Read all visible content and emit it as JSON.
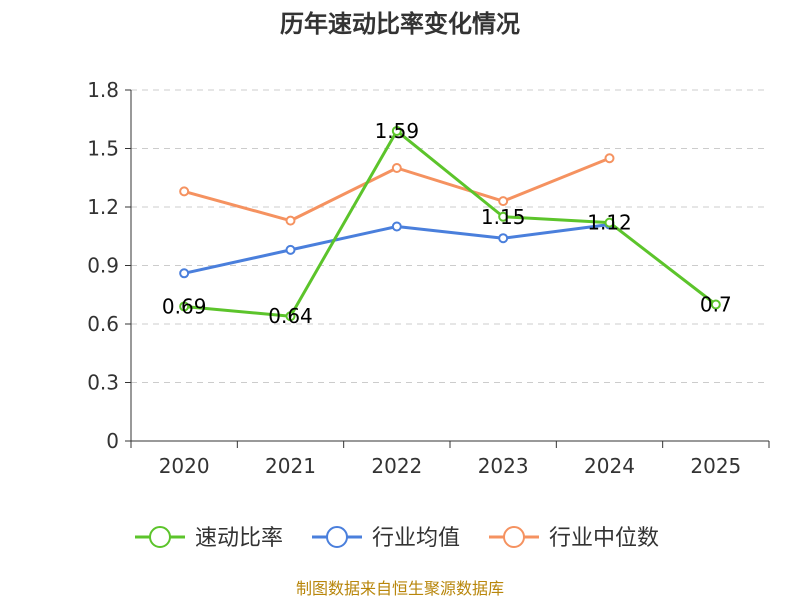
{
  "chart_data": {
    "type": "line",
    "title": "历年速动比率变化情况",
    "categories": [
      "2020",
      "2021",
      "2022",
      "2023",
      "2024",
      "2025"
    ],
    "ylim": [
      0,
      1.8
    ],
    "yticks": [
      "0",
      "0.3",
      "0.6",
      "0.9",
      "1.2",
      "1.5",
      "1.8"
    ],
    "grid": true,
    "legend_position": "bottom",
    "series": [
      {
        "name": "速动比率",
        "color": "#5cc42b",
        "values": [
          0.69,
          0.64,
          1.59,
          1.15,
          1.12,
          0.7
        ],
        "labels": [
          "0.69",
          "0.64",
          "1.59",
          "1.15",
          "1.12",
          "0.7"
        ]
      },
      {
        "name": "行业均值",
        "color": "#4a7fdc",
        "values": [
          0.86,
          0.98,
          1.1,
          1.04,
          1.11,
          null
        ]
      },
      {
        "name": "行业中位数",
        "color": "#f59260",
        "values": [
          1.28,
          1.13,
          1.4,
          1.23,
          1.45,
          null
        ]
      }
    ],
    "source": "制图数据来自恒生聚源数据库"
  }
}
